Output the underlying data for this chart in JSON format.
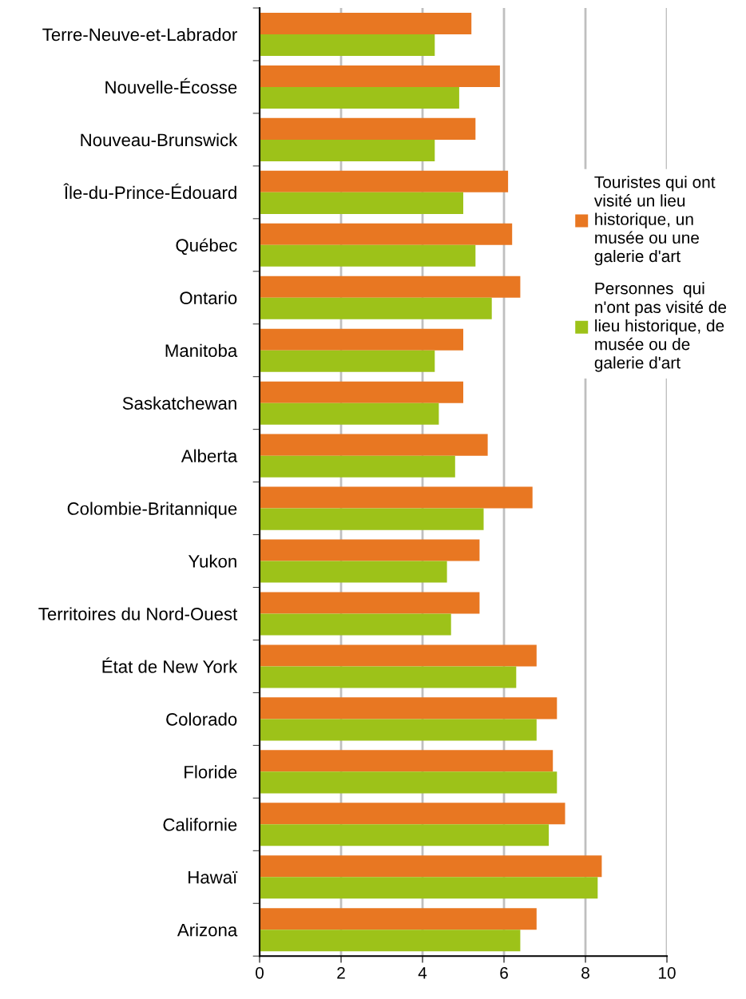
{
  "chart_data": {
    "type": "bar",
    "orientation": "horizontal",
    "categories": [
      "Terre-Neuve-et-Labrador",
      "Nouvelle-Écosse",
      "Nouveau-Brunswick",
      "Île-du-Prince-Édouard",
      "Québec",
      "Ontario",
      "Manitoba",
      "Saskatchewan",
      "Alberta",
      "Colombie-Britannique",
      "Yukon",
      "Territoires du Nord-Ouest",
      "État de New York",
      "Colorado",
      "Floride",
      "Californie",
      "Hawaï",
      "Arizona"
    ],
    "series": [
      {
        "name": "Touristes qui ont\nvisité un lieu\nhistorique, un\nmusée ou une\ngalerie d'art",
        "color": "#e87722",
        "values": [
          5.2,
          5.9,
          5.3,
          6.1,
          6.2,
          6.4,
          5.0,
          5.0,
          5.6,
          6.7,
          5.4,
          5.4,
          6.8,
          7.3,
          7.2,
          7.5,
          8.4,
          6.8
        ]
      },
      {
        "name": "Personnes  qui\nn'ont pas visité de\nlieu historique, de\nmusée ou de\ngalerie d'art",
        "color": "#9dc219",
        "values": [
          4.3,
          4.9,
          4.3,
          5.0,
          5.3,
          5.7,
          4.3,
          4.4,
          4.8,
          5.5,
          4.6,
          4.7,
          6.3,
          6.8,
          7.3,
          7.1,
          8.3,
          6.4
        ]
      }
    ],
    "xlim": [
      0,
      10
    ],
    "xticks": [
      0,
      2,
      4,
      6,
      8,
      10
    ],
    "grid": "x",
    "legend": "right"
  }
}
